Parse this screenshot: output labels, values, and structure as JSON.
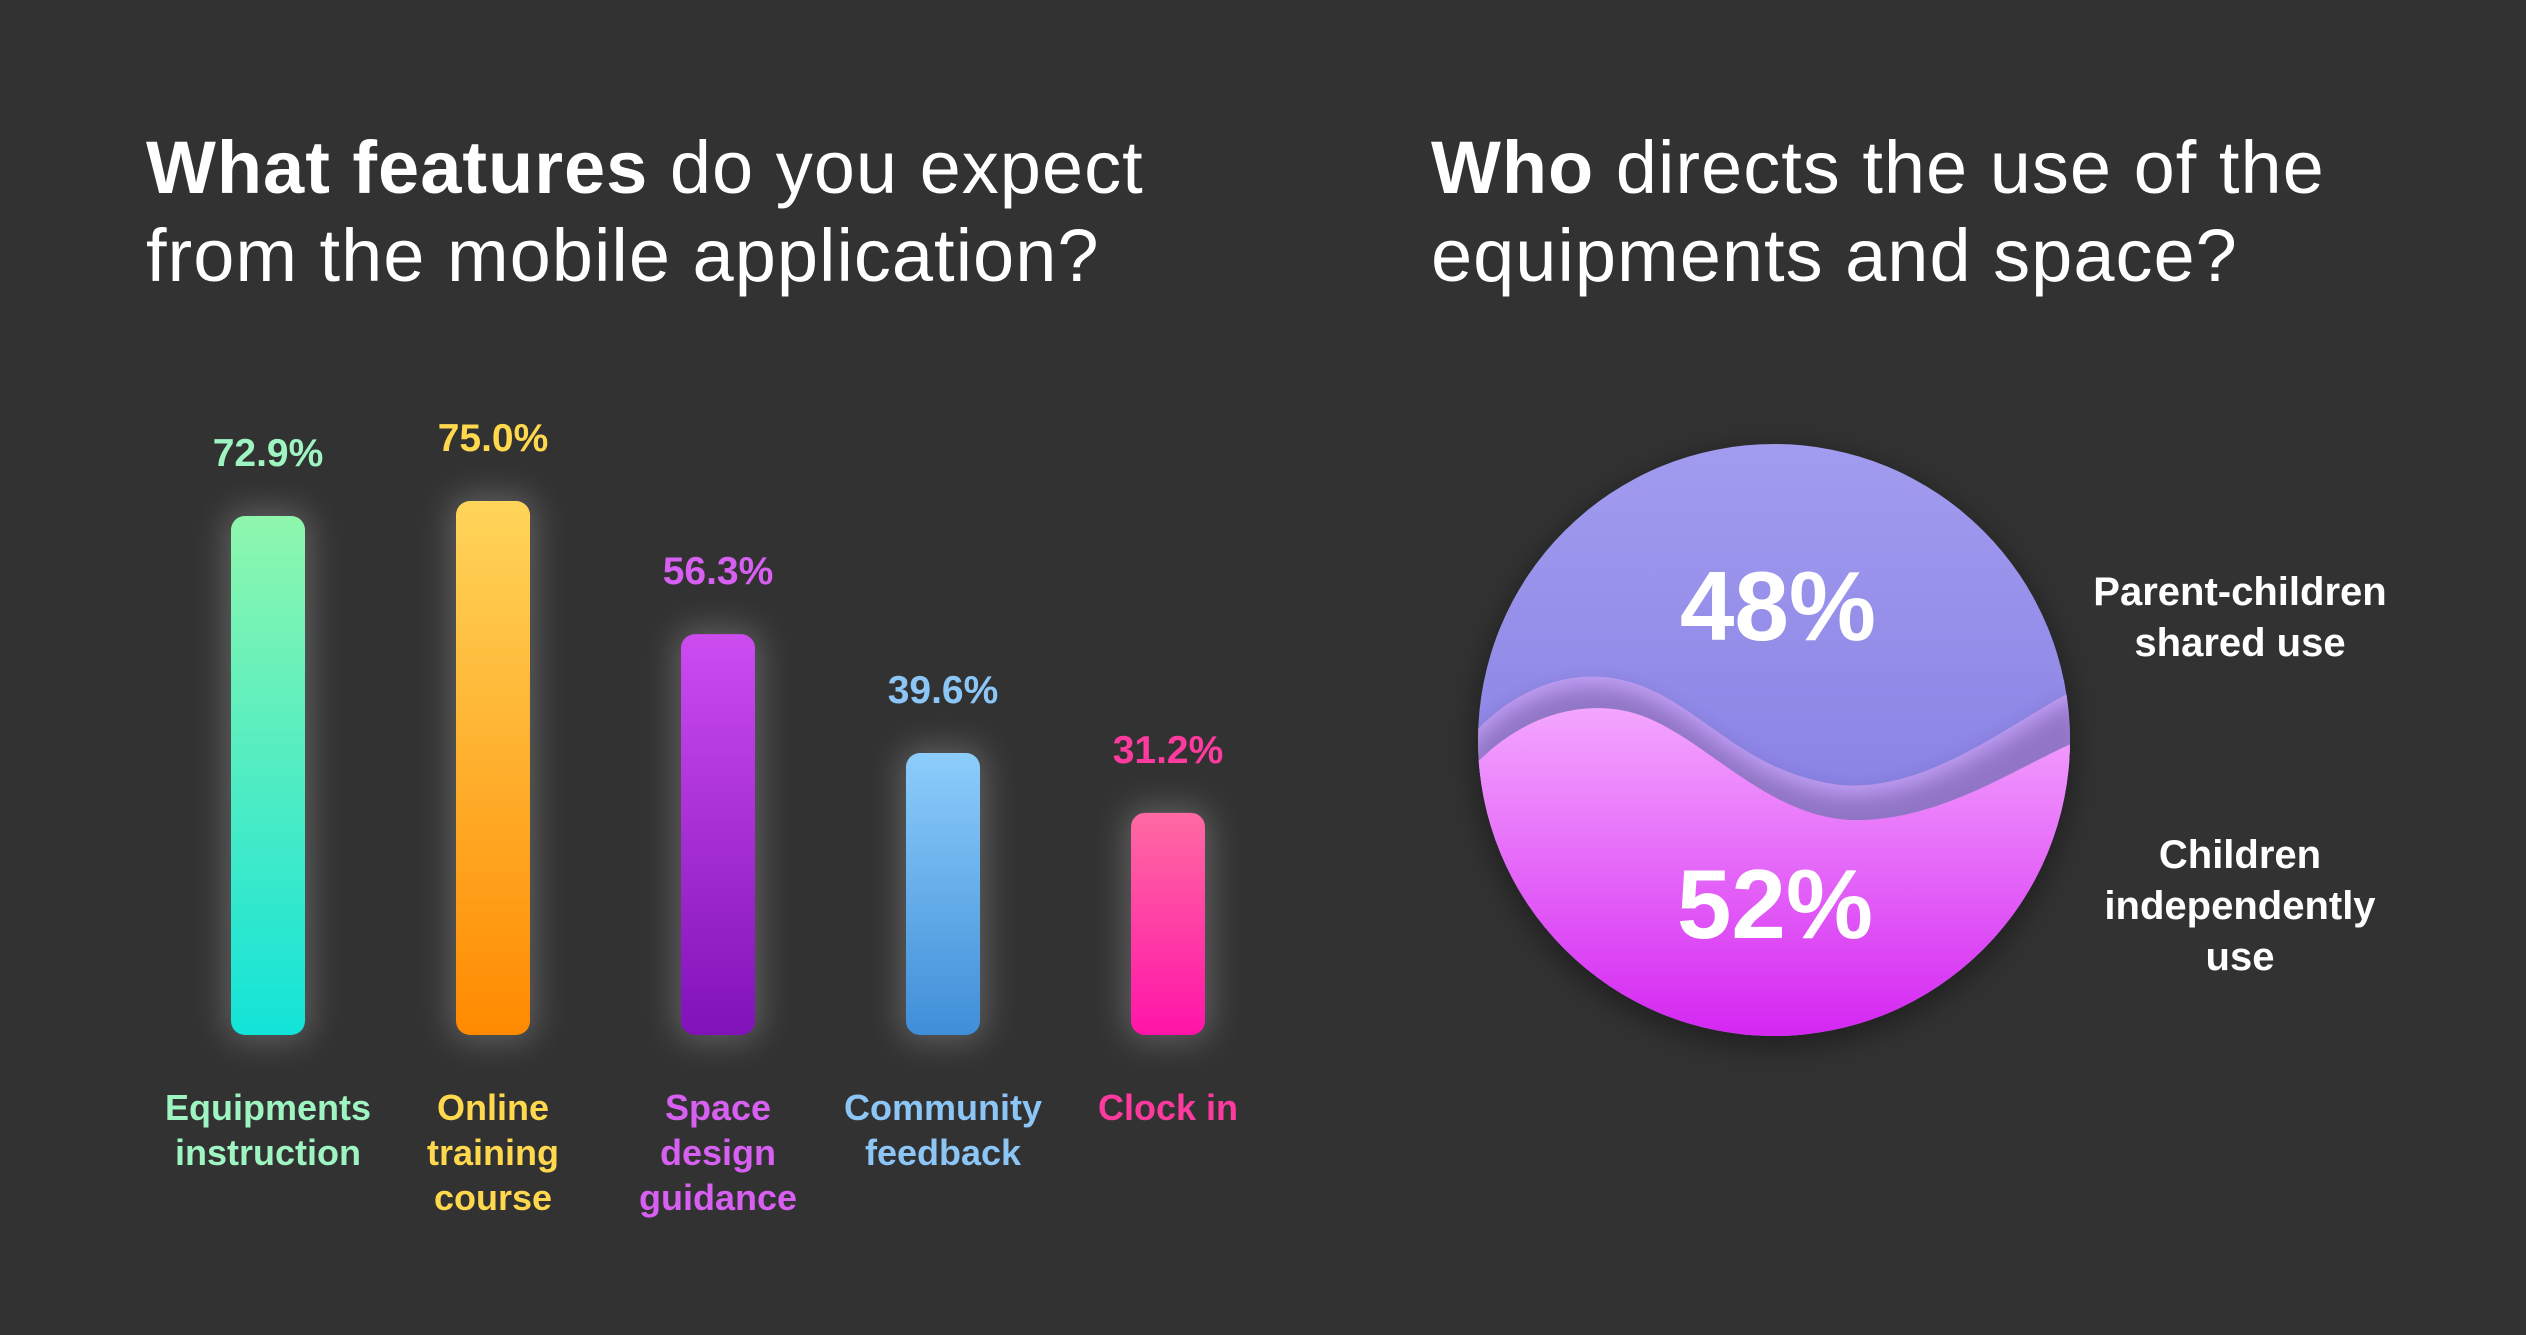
{
  "left_chart": {
    "title_bold": "What features",
    "title_rest": " do you expect from the mobile application?"
  },
  "right_chart": {
    "title_bold": "Who",
    "title_rest": " directs the use of the equipments and space?"
  },
  "chart_data": [
    {
      "type": "bar",
      "title": "What features do you expect from the mobile application?",
      "categories": [
        "Equipments instruction",
        "Online training course",
        "Space design guidance",
        "Community feedback",
        "Clock in"
      ],
      "values": [
        72.9,
        75.0,
        56.3,
        39.6,
        31.2
      ],
      "value_labels": [
        "72.9%",
        "75.0%",
        "56.3%",
        "39.6%",
        "31.2%"
      ],
      "label_lines": [
        [
          "Equipments",
          "instruction"
        ],
        [
          "Online",
          "training",
          "course"
        ],
        [
          "Space",
          "design",
          "guidance"
        ],
        [
          "Community",
          "feedback"
        ],
        [
          "Clock in"
        ]
      ],
      "colors": [
        {
          "top": "#8ff7ad",
          "bottom": "#12e3d8",
          "label": "#9ff5c2"
        },
        {
          "top": "#ffd55a",
          "bottom": "#ff8a00",
          "label": "#ffd84d"
        },
        {
          "top": "#cc4cf0",
          "bottom": "#8012b8",
          "label": "#d760f2"
        },
        {
          "top": "#8ccdfb",
          "bottom": "#3f8ed8",
          "label": "#8cc6f7"
        },
        {
          "top": "#ff6aa2",
          "bottom": "#ff14a8",
          "label": "#ff3a9e"
        }
      ],
      "ylim": [
        0,
        100
      ],
      "grid": false,
      "xlabel": "",
      "ylabel": ""
    },
    {
      "type": "pie",
      "title": "Who directs the use of the equipments and space?",
      "segments": [
        {
          "name": "Parent-children shared use",
          "name_lines": [
            "Parent-children",
            "shared use"
          ],
          "value": 48,
          "label": "48%",
          "color_top": "#a29cf0",
          "color_bottom": "#7a72dc"
        },
        {
          "name": "Children independently use",
          "name_lines": [
            "Children",
            "independently",
            "use"
          ],
          "value": 52,
          "label": "52%",
          "color_top": "#f4a6ff",
          "color_bottom": "#d21df0"
        }
      ],
      "legend": "right"
    }
  ]
}
